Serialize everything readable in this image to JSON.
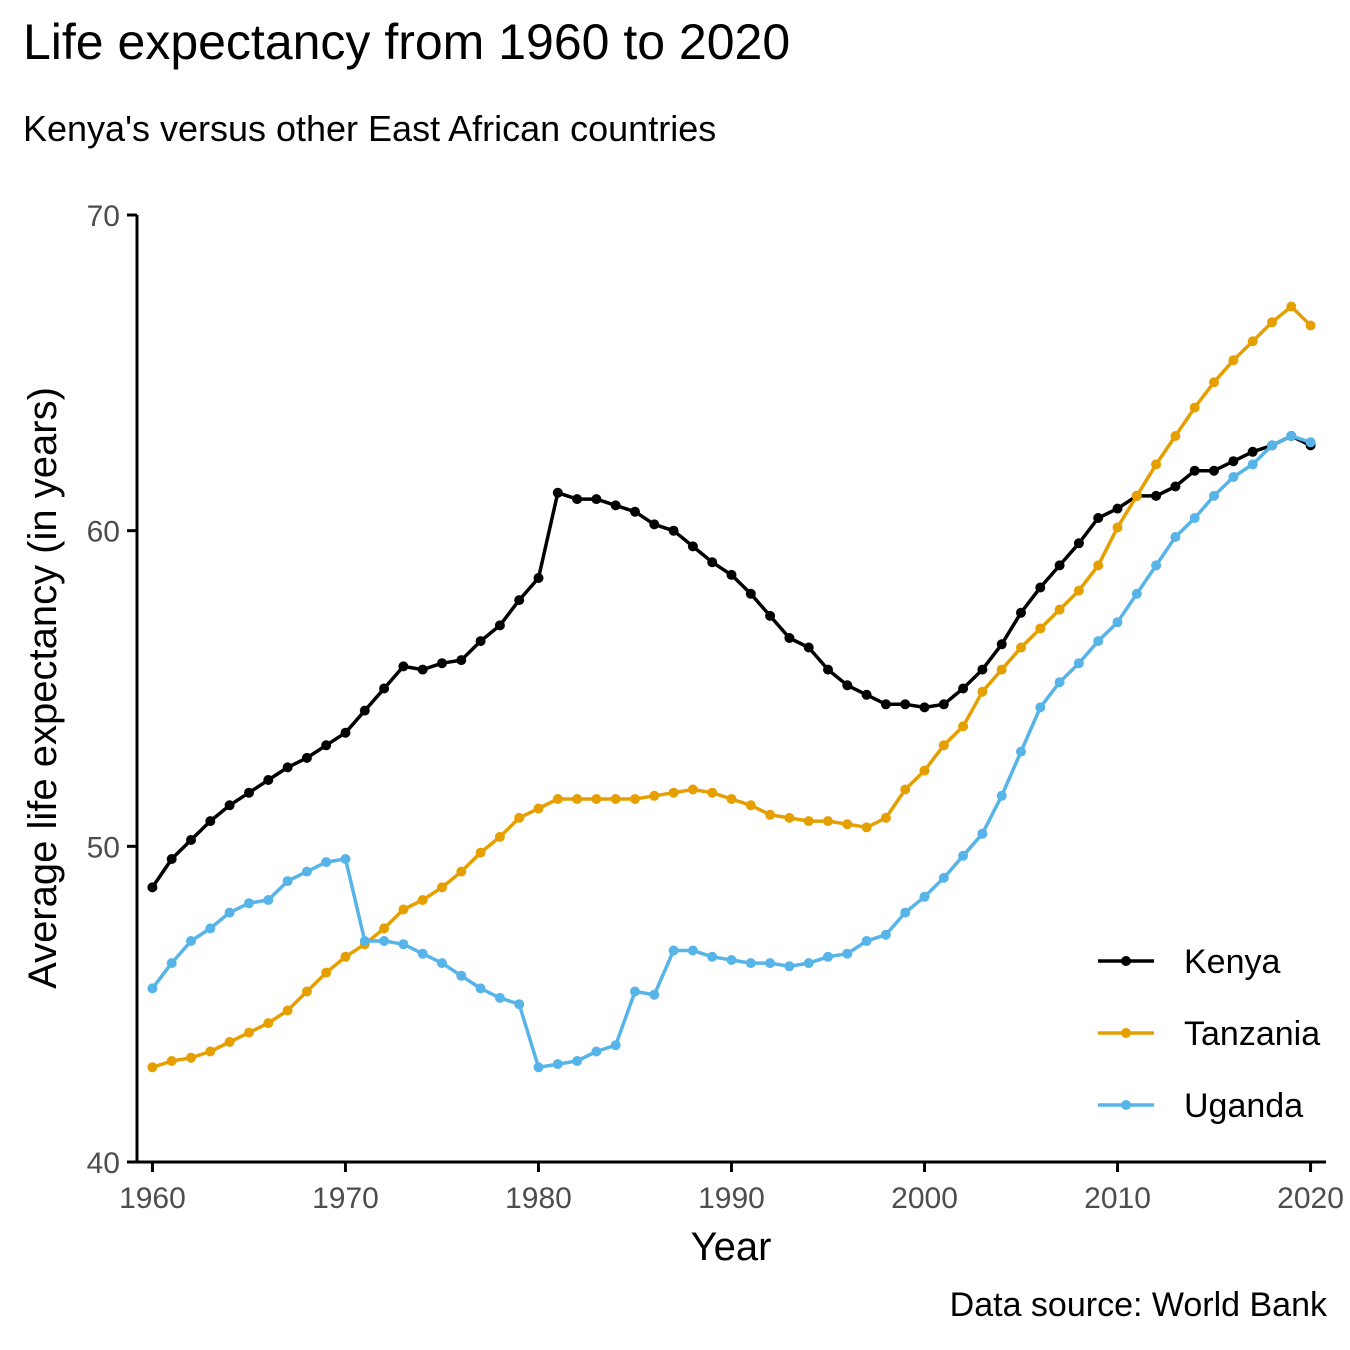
{
  "chart_data": {
    "type": "line",
    "title": "Life expectancy from 1960 to 2020",
    "subtitle": "Kenya's versus other East African countries",
    "caption": "Data source: World Bank",
    "xlabel": "Year",
    "ylabel": "Average life expectancy (in years)",
    "xlim": [
      1959.2,
      2020.8
    ],
    "ylim": [
      40,
      70
    ],
    "x_ticks": [
      1960,
      1970,
      1980,
      1990,
      2000,
      2010,
      2020
    ],
    "y_ticks": [
      40,
      50,
      60,
      70
    ],
    "grid": false,
    "legend_position": "bottom-right",
    "x": [
      1960,
      1961,
      1962,
      1963,
      1964,
      1965,
      1966,
      1967,
      1968,
      1969,
      1970,
      1971,
      1972,
      1973,
      1974,
      1975,
      1976,
      1977,
      1978,
      1979,
      1980,
      1981,
      1982,
      1983,
      1984,
      1985,
      1986,
      1987,
      1988,
      1989,
      1990,
      1991,
      1992,
      1993,
      1994,
      1995,
      1996,
      1997,
      1998,
      1999,
      2000,
      2001,
      2002,
      2003,
      2004,
      2005,
      2006,
      2007,
      2008,
      2009,
      2010,
      2011,
      2012,
      2013,
      2014,
      2015,
      2016,
      2017,
      2018,
      2019,
      2020
    ],
    "series": [
      {
        "name": "Kenya",
        "color": "#000000",
        "values": [
          48.7,
          49.6,
          50.2,
          50.8,
          51.3,
          51.7,
          52.1,
          52.5,
          52.8,
          53.2,
          53.6,
          54.3,
          55.0,
          55.7,
          55.6,
          55.8,
          55.9,
          56.5,
          57.0,
          57.8,
          58.5,
          61.2,
          61.0,
          61.0,
          60.8,
          60.6,
          60.2,
          60.0,
          59.5,
          59.0,
          58.6,
          58.0,
          57.3,
          56.6,
          56.3,
          55.6,
          55.1,
          54.8,
          54.5,
          54.5,
          54.4,
          54.5,
          55.0,
          55.6,
          56.4,
          57.4,
          58.2,
          58.9,
          59.6,
          60.4,
          60.7,
          61.1,
          61.1,
          61.4,
          61.9,
          61.9,
          62.2,
          62.5,
          62.7,
          63.0,
          62.7
        ]
      },
      {
        "name": "Tanzania",
        "color": "#e69f00",
        "values": [
          43.0,
          43.2,
          43.3,
          43.5,
          43.8,
          44.1,
          44.4,
          44.8,
          45.4,
          46.0,
          46.5,
          46.9,
          47.4,
          48.0,
          48.3,
          48.7,
          49.2,
          49.8,
          50.3,
          50.9,
          51.2,
          51.5,
          51.5,
          51.5,
          51.5,
          51.5,
          51.6,
          51.7,
          51.8,
          51.7,
          51.5,
          51.3,
          51.0,
          50.9,
          50.8,
          50.8,
          50.7,
          50.6,
          50.9,
          51.8,
          52.4,
          53.2,
          53.8,
          54.9,
          55.6,
          56.3,
          56.9,
          57.5,
          58.1,
          58.9,
          60.1,
          61.1,
          62.1,
          63.0,
          63.9,
          64.7,
          65.4,
          66.0,
          66.6,
          67.1,
          66.5
        ]
      },
      {
        "name": "Uganda",
        "color": "#56b4e9",
        "values": [
          45.5,
          46.3,
          47.0,
          47.4,
          47.9,
          48.2,
          48.3,
          48.9,
          49.2,
          49.5,
          49.6,
          47.0,
          47.0,
          46.9,
          46.6,
          46.3,
          45.9,
          45.5,
          45.2,
          45.0,
          43.0,
          43.1,
          43.2,
          43.5,
          43.7,
          45.4,
          45.3,
          46.7,
          46.7,
          46.5,
          46.4,
          46.3,
          46.3,
          46.2,
          46.3,
          46.5,
          46.6,
          47.0,
          47.2,
          47.9,
          48.4,
          49.0,
          49.7,
          50.4,
          51.6,
          53.0,
          54.4,
          55.2,
          55.8,
          56.5,
          57.1,
          58.0,
          58.9,
          59.8,
          60.4,
          61.1,
          61.7,
          62.1,
          62.7,
          63.0,
          62.8
        ]
      }
    ]
  }
}
